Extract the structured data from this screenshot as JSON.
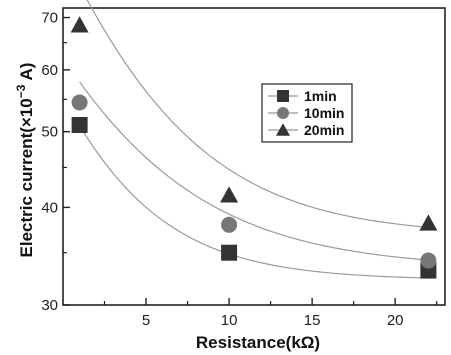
{
  "chart_data": {
    "type": "scatter",
    "xlabel": "Resistance(kΩ)",
    "ylabel_main": "Electric current(×10",
    "ylabel_exp": "−3",
    "ylabel_unit": " A)",
    "xlim": [
      0,
      23
    ],
    "ylim": [
      30,
      72
    ],
    "y_scale": "log",
    "x_ticks": [
      5,
      10,
      15,
      20
    ],
    "y_ticks": [
      30,
      40,
      50,
      60,
      70
    ],
    "grid": false,
    "legend_position": "center-right",
    "series": [
      {
        "name": "1min",
        "marker": "square",
        "color": "#333333",
        "x": [
          1,
          10,
          22
        ],
        "y": [
          51,
          35,
          33.2
        ],
        "fit": {
          "a": 18.6,
          "b": 0.22,
          "c": 32.3
        }
      },
      {
        "name": "10min",
        "marker": "circle",
        "color": "#777777",
        "x": [
          1,
          10,
          22
        ],
        "y": [
          54.5,
          38,
          34.2
        ],
        "fit": {
          "a": 24.5,
          "b": 0.16,
          "c": 33.4
        }
      },
      {
        "name": "20min",
        "marker": "triangle",
        "color": "#333333",
        "x": [
          1,
          10,
          22
        ],
        "y": [
          68.5,
          41.5,
          38.2
        ],
        "fit": {
          "a": 40.1,
          "b": 0.18,
          "c": 36.8
        }
      }
    ]
  }
}
